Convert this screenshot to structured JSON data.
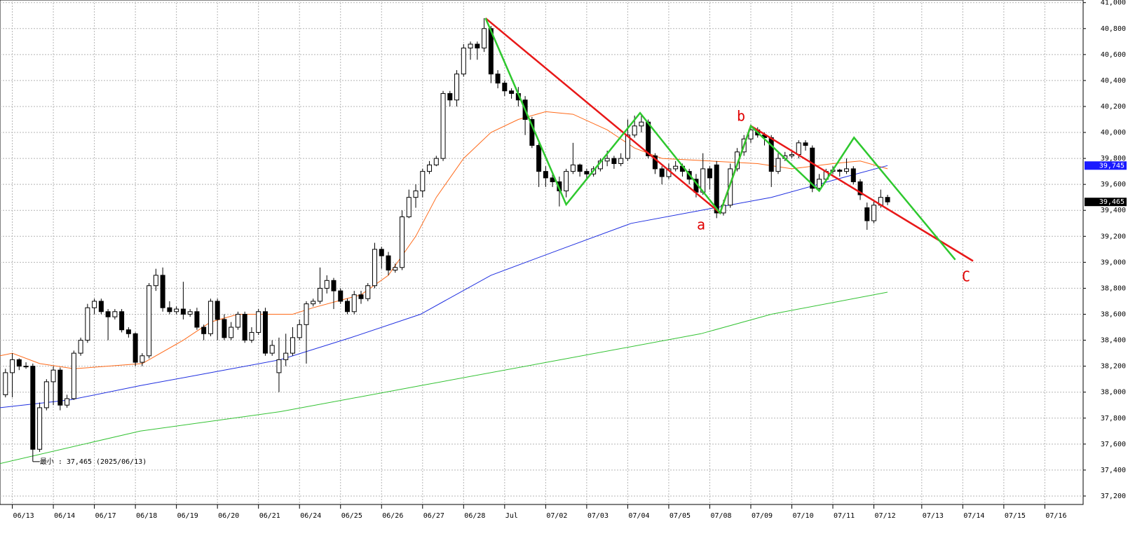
{
  "chart_data": {
    "type": "candlestick",
    "x": [
      0,
      1,
      2,
      3,
      4,
      5,
      6,
      7,
      8,
      9,
      10,
      11,
      12,
      13,
      14,
      15,
      16,
      17,
      18,
      19,
      20,
      21,
      22,
      23,
      24,
      25,
      26,
      27,
      28,
      29,
      30,
      31,
      32,
      33,
      34,
      35,
      36,
      37,
      38,
      39,
      40,
      41,
      42,
      43,
      44,
      45,
      46,
      47,
      48,
      49,
      50,
      51,
      52,
      53,
      54,
      55,
      56,
      57,
      58,
      59,
      60,
      61,
      62,
      63,
      64,
      65,
      66,
      67,
      68,
      69,
      70,
      71,
      72,
      73,
      74,
      75,
      76,
      77,
      78,
      79,
      80,
      81,
      82,
      83,
      84,
      85,
      86,
      87,
      88,
      89,
      90,
      91,
      92,
      93,
      94,
      95,
      96,
      97,
      98,
      99,
      100,
      101,
      102,
      103,
      104,
      105,
      106,
      107,
      108,
      109,
      110,
      111,
      112,
      113,
      114,
      115,
      116,
      117,
      118,
      119,
      120,
      121,
      122,
      123,
      124,
      125,
      126,
      127,
      128,
      129
    ],
    "open": [
      37980,
      38150,
      38250,
      38200,
      38200,
      37560,
      37880,
      38080,
      38170,
      37900,
      37950,
      38300,
      38400,
      38650,
      38700,
      38620,
      38580,
      38620,
      38480,
      38450,
      38230,
      38280,
      38820,
      38900,
      38650,
      38620,
      38640,
      38600,
      38620,
      38500,
      38450,
      38700,
      38560,
      38420,
      38500,
      38600,
      38400,
      38460,
      38620,
      38300,
      38150,
      38250,
      38300,
      38420,
      38520,
      38680,
      38700,
      38800,
      38860,
      38780,
      38700,
      38620,
      38750,
      38720,
      38820,
      39100,
      39050,
      38940,
      38960,
      39350,
      39500,
      39550,
      39700,
      39750,
      39800,
      40300,
      40250,
      40450,
      40650,
      40680,
      40650,
      40800,
      40450,
      40380,
      40320,
      40300,
      40250,
      40100,
      39900,
      39700,
      39650,
      39620,
      39550,
      39700,
      39750,
      39700,
      39680,
      39720,
      39780,
      39800,
      39760,
      39800,
      39980,
      40050,
      40080,
      39820,
      39720,
      39660,
      39720,
      39740,
      39700,
      39640,
      39540,
      39720,
      39750,
      39380,
      39440,
      39720,
      39850,
      39950,
      40020,
      39980,
      39960,
      39700,
      39800,
      39820,
      39830,
      39920,
      39880,
      39570,
      39640,
      39700,
      39710,
      39700,
      39720,
      39620,
      39420,
      39320,
      39440,
      39500
    ],
    "high": [
      38180,
      38300,
      38260,
      38230,
      38220,
      37920,
      38100,
      38200,
      38190,
      37980,
      38320,
      38420,
      38680,
      38720,
      38720,
      38640,
      38640,
      38640,
      38500,
      38460,
      38300,
      38840,
      38950,
      38960,
      38700,
      38660,
      38850,
      38640,
      38650,
      38520,
      38720,
      38720,
      38600,
      38540,
      38620,
      38620,
      38500,
      38640,
      38650,
      38400,
      38420,
      38450,
      38500,
      38560,
      38700,
      38720,
      38960,
      38900,
      38880,
      38800,
      38720,
      38780,
      38780,
      38840,
      39150,
      39120,
      39080,
      38990,
      39400,
      39560,
      39600,
      39720,
      39780,
      39820,
      40320,
      40320,
      40480,
      40680,
      40700,
      40700,
      40880,
      40820,
      40480,
      40400,
      40340,
      40350,
      40280,
      40120,
      39920,
      39740,
      39680,
      39660,
      39720,
      39920,
      39760,
      39720,
      39740,
      39800,
      39860,
      39820,
      39840,
      40100,
      40130,
      40140,
      40100,
      39840,
      39740,
      39760,
      39780,
      39760,
      39720,
      39680,
      39840,
      39740,
      39780,
      39480,
      39760,
      39880,
      39980,
      40060,
      40040,
      40000,
      39980,
      39840,
      39850,
      39860,
      39940,
      39940,
      39900,
      39680,
      39720,
      39740,
      39720,
      39800,
      39740,
      39640,
      39460,
      39480,
      39560,
      39520
    ],
    "low": [
      37960,
      37960,
      38170,
      38180,
      37465,
      37540,
      37860,
      37900,
      37860,
      37880,
      37940,
      38280,
      38380,
      38600,
      38600,
      38400,
      38560,
      38460,
      38420,
      38200,
      38200,
      38260,
      38780,
      38620,
      38600,
      38600,
      38560,
      38580,
      38480,
      38400,
      38430,
      38400,
      38400,
      38400,
      38480,
      38380,
      38380,
      38440,
      38280,
      38280,
      38000,
      38200,
      38280,
      38400,
      38220,
      38660,
      38680,
      38760,
      38640,
      38680,
      38600,
      38600,
      38680,
      38700,
      38800,
      38950,
      38900,
      38920,
      38940,
      39340,
      39420,
      39500,
      39680,
      39740,
      39780,
      40200,
      40200,
      40430,
      40560,
      40560,
      40620,
      40380,
      40340,
      40280,
      40260,
      40200,
      39980,
      39880,
      39580,
      39580,
      39580,
      39430,
      39500,
      39680,
      39660,
      39640,
      39660,
      39700,
      39740,
      39720,
      39740,
      39780,
      39960,
      40000,
      39800,
      39680,
      39600,
      39640,
      39700,
      39660,
      39600,
      39500,
      39520,
      39560,
      39340,
      39360,
      39420,
      39700,
      39820,
      39920,
      39960,
      39900,
      39580,
      39680,
      39780,
      39800,
      39800,
      39860,
      39540,
      39550,
      39620,
      39680,
      39660,
      39680,
      39600,
      39480,
      39250,
      39300,
      39420,
      39440
    ],
    "close": [
      38150,
      38250,
      38200,
      38200,
      37560,
      37880,
      38080,
      38170,
      37900,
      37950,
      38300,
      38400,
      38650,
      38700,
      38620,
      38580,
      38620,
      38480,
      38450,
      38230,
      38280,
      38820,
      38900,
      38650,
      38620,
      38640,
      38600,
      38620,
      38500,
      38450,
      38700,
      38560,
      38420,
      38500,
      38600,
      38400,
      38460,
      38620,
      38300,
      38360,
      38250,
      38300,
      38420,
      38520,
      38680,
      38700,
      38800,
      38860,
      38780,
      38700,
      38620,
      38750,
      38720,
      38820,
      39100,
      39050,
      38940,
      38960,
      39350,
      39500,
      39550,
      39700,
      39750,
      39800,
      40300,
      40250,
      40450,
      40650,
      40680,
      40650,
      40800,
      40450,
      40380,
      40320,
      40300,
      40250,
      40100,
      39900,
      39700,
      39650,
      39620,
      39550,
      39700,
      39750,
      39700,
      39680,
      39720,
      39780,
      39800,
      39760,
      39800,
      39980,
      40050,
      40080,
      39820,
      39720,
      39660,
      39720,
      39740,
      39700,
      39640,
      39540,
      39720,
      39650,
      39380,
      39440,
      39720,
      39850,
      39950,
      40020,
      39980,
      39960,
      39700,
      39800,
      39820,
      39830,
      39920,
      39900,
      39570,
      39640,
      39700,
      39710,
      39700,
      39720,
      39620,
      39520,
      39320,
      39440,
      39500,
      39465
    ],
    "lines": [
      {
        "color": "#ff6a1a",
        "x": [
          -0.8,
          1,
          5,
          10,
          20,
          26,
          30,
          34,
          42,
          45,
          52,
          56,
          60,
          63,
          67,
          71,
          75,
          79,
          83,
          88,
          92,
          96,
          103,
          110,
          115,
          121,
          125,
          129
        ],
        "values": [
          38280,
          38300,
          38220,
          38180,
          38220,
          38400,
          38540,
          38600,
          38600,
          38650,
          38750,
          38900,
          39200,
          39500,
          39800,
          40000,
          40100,
          40160,
          40140,
          40020,
          39880,
          39800,
          39780,
          39760,
          39720,
          39760,
          39780,
          39720
        ]
      },
      {
        "color": "#1f2fe0",
        "x": [
          -0.8,
          9.4,
          19.7,
          30,
          40.2,
          50.5,
          60.7,
          71,
          81.2,
          91.5,
          101.7,
          112,
          122.3,
          129
        ],
        "values": [
          37880,
          37940,
          38050,
          38150,
          38250,
          38420,
          38600,
          38900,
          39100,
          39300,
          39400,
          39500,
          39650,
          39745
        ]
      },
      {
        "color": "#33c233",
        "x": [
          -0.8,
          19.7,
          40.2,
          60.7,
          81.2,
          101.7,
          112,
          129
        ],
        "values": [
          37450,
          37700,
          37850,
          38050,
          38250,
          38450,
          38600,
          38770
        ]
      }
    ],
    "zigzag": [
      {
        "color": "#e81818",
        "x": [
          70.2,
          104.5,
          109,
          141.5
        ],
        "values": [
          40880,
          39380,
          40050,
          39010
        ]
      },
      {
        "color": "#2ec82e",
        "x": [
          70.2,
          82,
          92.8,
          104.5,
          109,
          119,
          124.1,
          138.9
        ],
        "values": [
          40880,
          39445,
          40150,
          39380,
          40050,
          39550,
          39960,
          39020
        ]
      }
    ],
    "annotations": [
      "a",
      "b",
      "C"
    ],
    "min_note": "最小 : 37,465 (2025/06/13)",
    "price_labels": [
      {
        "value": 39745,
        "label": "39,745",
        "color": "#1a1aff"
      },
      {
        "value": 39465,
        "label": "39,465",
        "color": "#000000"
      }
    ],
    "xlim": [
      -0.8,
      157.6
    ],
    "ylim": [
      37135,
      41020
    ],
    "xticks": [
      {
        "value": 1,
        "label": "06/13"
      },
      {
        "value": 7,
        "label": "06/14"
      },
      {
        "value": 13,
        "label": "06/17"
      },
      {
        "value": 19,
        "label": "06/18"
      },
      {
        "value": 25,
        "label": "06/19"
      },
      {
        "value": 31,
        "label": "06/20"
      },
      {
        "value": 37,
        "label": "06/21"
      },
      {
        "value": 43,
        "label": "06/24"
      },
      {
        "value": 49,
        "label": "06/25"
      },
      {
        "value": 55,
        "label": "06/26"
      },
      {
        "value": 61,
        "label": "06/27"
      },
      {
        "value": 67,
        "label": "06/28"
      },
      {
        "value": 73,
        "label": "Jul"
      },
      {
        "value": 79,
        "label": "07/02"
      },
      {
        "value": 85,
        "label": "07/03"
      },
      {
        "value": 91,
        "label": "07/04"
      },
      {
        "value": 97,
        "label": "07/05"
      },
      {
        "value": 103,
        "label": "07/08"
      },
      {
        "value": 109,
        "label": "07/09"
      },
      {
        "value": 115,
        "label": "07/10"
      },
      {
        "value": 121,
        "label": "07/11"
      },
      {
        "value": 127,
        "label": "07/12"
      },
      {
        "value": 134,
        "label": "07/13"
      },
      {
        "value": 140,
        "label": "07/14"
      },
      {
        "value": 146,
        "label": "07/15"
      },
      {
        "value": 152,
        "label": "07/16"
      }
    ],
    "yticks": [
      {
        "value": 37200,
        "label": "37,200"
      },
      {
        "value": 37400,
        "label": "37,400"
      },
      {
        "value": 37600,
        "label": "37,600"
      },
      {
        "value": 37800,
        "label": "37,800"
      },
      {
        "value": 38000,
        "label": "38,000"
      },
      {
        "value": 38200,
        "label": "38,200"
      },
      {
        "value": 38400,
        "label": "38,400"
      },
      {
        "value": 38600,
        "label": "38,600"
      },
      {
        "value": 38800,
        "label": "38,800"
      },
      {
        "value": 39000,
        "label": "39,000"
      },
      {
        "value": 39200,
        "label": "39,200"
      },
      {
        "value": 39400,
        "label": "39,400"
      },
      {
        "value": 39600,
        "label": "39,600"
      },
      {
        "value": 39800,
        "label": "39,800"
      },
      {
        "value": 40000,
        "label": "40,000"
      },
      {
        "value": 40200,
        "label": "40,200"
      },
      {
        "value": 40400,
        "label": "40,400"
      },
      {
        "value": 40600,
        "label": "40,600"
      },
      {
        "value": 40800,
        "label": "40,800"
      },
      {
        "value": 41000,
        "label": "41,000"
      }
    ],
    "grid": true
  }
}
